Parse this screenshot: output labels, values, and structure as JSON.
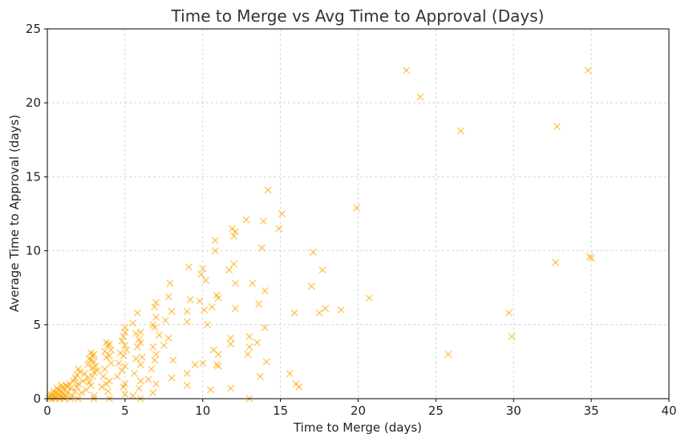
{
  "chart_data": {
    "type": "scatter",
    "title": "Time to Merge vs Avg Time to Approval (Days)",
    "xlabel": "Time to Merge (days)",
    "ylabel": "Average Time to Approval (days)",
    "xlim": [
      0,
      40
    ],
    "ylim": [
      0,
      25
    ],
    "xticks": [
      0,
      5,
      10,
      15,
      20,
      25,
      30,
      35,
      40
    ],
    "yticks": [
      0,
      5,
      10,
      15,
      20,
      25
    ],
    "xtick_labels": [
      "0",
      "5",
      "10",
      "15",
      "20",
      "25",
      "30",
      "35",
      "40"
    ],
    "ytick_labels": [
      "0",
      "5",
      "10",
      "15",
      "20",
      "25"
    ],
    "grid": true,
    "marker": "x",
    "color": "#FFA500",
    "points": [
      [
        0.1,
        0.05
      ],
      [
        0.2,
        0.1
      ],
      [
        0.3,
        0.2
      ],
      [
        0.4,
        0.3
      ],
      [
        0.5,
        0.1
      ],
      [
        0.6,
        0.4
      ],
      [
        0.7,
        0.6
      ],
      [
        0.8,
        0.2
      ],
      [
        0.9,
        0.5
      ],
      [
        1.0,
        0.8
      ],
      [
        0.3,
        0.0
      ],
      [
        0.5,
        0.0
      ],
      [
        0.8,
        0.0
      ],
      [
        1.0,
        0.3
      ],
      [
        1.1,
        0.6
      ],
      [
        1.2,
        0.9
      ],
      [
        1.3,
        0.4
      ],
      [
        1.4,
        1.0
      ],
      [
        1.5,
        0.7
      ],
      [
        1.6,
        0.2
      ],
      [
        1.0,
        0.1
      ],
      [
        0.7,
        0.3
      ],
      [
        0.9,
        0.9
      ],
      [
        1.2,
        0.2
      ],
      [
        1.1,
        0.0
      ],
      [
        0.6,
        0.7
      ],
      [
        0.4,
        0.5
      ],
      [
        1.3,
        0.8
      ],
      [
        1.5,
        0.0
      ],
      [
        0.2,
        0.3
      ],
      [
        1.7,
        1.2
      ],
      [
        1.8,
        0.5
      ],
      [
        1.9,
        1.6
      ],
      [
        2.0,
        1.0
      ],
      [
        2.0,
        0.0
      ],
      [
        2.1,
        1.8
      ],
      [
        2.2,
        0.4
      ],
      [
        1.8,
        1.4
      ],
      [
        1.9,
        0.8
      ],
      [
        2.0,
        2.0
      ],
      [
        2.3,
        1.2
      ],
      [
        2.4,
        1.7
      ],
      [
        2.5,
        0.6
      ],
      [
        2.6,
        2.3
      ],
      [
        2.7,
        1.1
      ],
      [
        2.8,
        2.6
      ],
      [
        2.9,
        2.1
      ],
      [
        3.0,
        2.5
      ],
      [
        3.0,
        0.2
      ],
      [
        2.9,
        1.5
      ],
      [
        2.8,
        0.9
      ],
      [
        3.0,
        1.8
      ],
      [
        2.7,
        2.7
      ],
      [
        2.6,
        1.4
      ],
      [
        3.0,
        0.0
      ],
      [
        2.9,
        2.9
      ],
      [
        3.1,
        2.2
      ],
      [
        3.2,
        1.9
      ],
      [
        3.0,
        3.0
      ],
      [
        2.8,
        3.1
      ],
      [
        3.5,
        0.8
      ],
      [
        3.6,
        1.5
      ],
      [
        3.7,
        3.2
      ],
      [
        3.8,
        2.8
      ],
      [
        3.9,
        3.6
      ],
      [
        4.0,
        1.2
      ],
      [
        4.0,
        3.7
      ],
      [
        4.1,
        2.4
      ],
      [
        3.8,
        1.0
      ],
      [
        3.9,
        0.5
      ],
      [
        4.0,
        0.0
      ],
      [
        3.7,
        2.0
      ],
      [
        4.1,
        3.3
      ],
      [
        4.0,
        2.9
      ],
      [
        3.8,
        3.8
      ],
      [
        4.5,
        1.5
      ],
      [
        4.6,
        2.4
      ],
      [
        4.7,
        3.1
      ],
      [
        4.8,
        3.9
      ],
      [
        4.9,
        4.2
      ],
      [
        5.0,
        4.5
      ],
      [
        5.0,
        3.6
      ],
      [
        5.0,
        2.2
      ],
      [
        5.0,
        1.0
      ],
      [
        4.9,
        0.8
      ],
      [
        5.0,
        0.3
      ],
      [
        4.8,
        1.9
      ],
      [
        5.0,
        4.8
      ],
      [
        4.9,
        2.9
      ],
      [
        5.1,
        3.3
      ],
      [
        5.5,
        0.2
      ],
      [
        5.6,
        1.7
      ],
      [
        5.7,
        2.7
      ],
      [
        5.8,
        3.5
      ],
      [
        5.9,
        4.0
      ],
      [
        6.0,
        4.5
      ],
      [
        6.0,
        2.3
      ],
      [
        6.0,
        1.2
      ],
      [
        5.9,
        0.7
      ],
      [
        6.0,
        3.8
      ],
      [
        5.8,
        5.8
      ],
      [
        5.7,
        4.4
      ],
      [
        6.1,
        2.8
      ],
      [
        5.5,
        5.1
      ],
      [
        6.0,
        0.0
      ],
      [
        6.5,
        1.3
      ],
      [
        6.7,
        2.0
      ],
      [
        6.8,
        3.5
      ],
      [
        6.9,
        4.8
      ],
      [
        7.0,
        5.5
      ],
      [
        7.0,
        6.5
      ],
      [
        6.9,
        6.2
      ],
      [
        6.8,
        5.0
      ],
      [
        7.0,
        1.0
      ],
      [
        6.8,
        0.4
      ],
      [
        7.0,
        3.0
      ],
      [
        6.9,
        2.6
      ],
      [
        7.2,
        4.3
      ],
      [
        7.5,
        3.6
      ],
      [
        7.8,
        4.1
      ],
      [
        7.6,
        5.3
      ],
      [
        8.0,
        1.4
      ],
      [
        8.0,
        5.9
      ],
      [
        7.9,
        7.8
      ],
      [
        7.8,
        6.9
      ],
      [
        8.1,
        2.6
      ],
      [
        9.0,
        0.9
      ],
      [
        9.0,
        1.7
      ],
      [
        9.0,
        5.2
      ],
      [
        9.1,
        8.9
      ],
      [
        9.2,
        6.7
      ],
      [
        9.0,
        5.9
      ],
      [
        9.5,
        2.3
      ],
      [
        9.8,
        6.6
      ],
      [
        9.9,
        8.4
      ],
      [
        10.0,
        8.8
      ],
      [
        10.0,
        2.4
      ],
      [
        10.1,
        6.0
      ],
      [
        10.2,
        8.0
      ],
      [
        10.3,
        5.0
      ],
      [
        10.5,
        0.6
      ],
      [
        10.6,
        6.2
      ],
      [
        10.7,
        3.3
      ],
      [
        10.8,
        10.0
      ],
      [
        10.8,
        10.7
      ],
      [
        10.9,
        7.0
      ],
      [
        11.0,
        6.8
      ],
      [
        10.9,
        2.3
      ],
      [
        11.0,
        3.0
      ],
      [
        11.0,
        2.2
      ],
      [
        11.8,
        0.7
      ],
      [
        11.8,
        4.1
      ],
      [
        11.9,
        11.5
      ],
      [
        12.0,
        11.0
      ],
      [
        12.0,
        9.1
      ],
      [
        12.1,
        6.1
      ],
      [
        12.1,
        7.8
      ],
      [
        11.8,
        3.7
      ],
      [
        11.7,
        8.7
      ],
      [
        12.1,
        11.3
      ],
      [
        12.8,
        12.1
      ],
      [
        12.9,
        3.0
      ],
      [
        13.0,
        3.5
      ],
      [
        13.0,
        4.2
      ],
      [
        13.0,
        0.0
      ],
      [
        13.2,
        7.8
      ],
      [
        13.5,
        3.8
      ],
      [
        13.6,
        6.4
      ],
      [
        13.7,
        1.5
      ],
      [
        13.8,
        10.2
      ],
      [
        13.9,
        12.0
      ],
      [
        14.0,
        4.8
      ],
      [
        14.0,
        7.3
      ],
      [
        14.1,
        2.5
      ],
      [
        14.2,
        14.1
      ],
      [
        14.9,
        11.5
      ],
      [
        15.1,
        12.5
      ],
      [
        15.6,
        1.7
      ],
      [
        15.9,
        5.8
      ],
      [
        16.0,
        1.0
      ],
      [
        16.2,
        0.8
      ],
      [
        17.0,
        7.6
      ],
      [
        17.1,
        9.9
      ],
      [
        17.5,
        5.8
      ],
      [
        17.7,
        8.7
      ],
      [
        17.9,
        6.1
      ],
      [
        18.9,
        6.0
      ],
      [
        19.9,
        12.9
      ],
      [
        20.7,
        6.8
      ],
      [
        23.1,
        22.2
      ],
      [
        24.0,
        20.4
      ],
      [
        25.8,
        3.0
      ],
      [
        26.6,
        18.1
      ],
      [
        29.7,
        5.8
      ],
      [
        29.9,
        4.2
      ],
      [
        32.7,
        9.2
      ],
      [
        32.8,
        18.4
      ],
      [
        34.8,
        22.2
      ],
      [
        34.9,
        9.6
      ],
      [
        35.0,
        9.5
      ]
    ]
  }
}
